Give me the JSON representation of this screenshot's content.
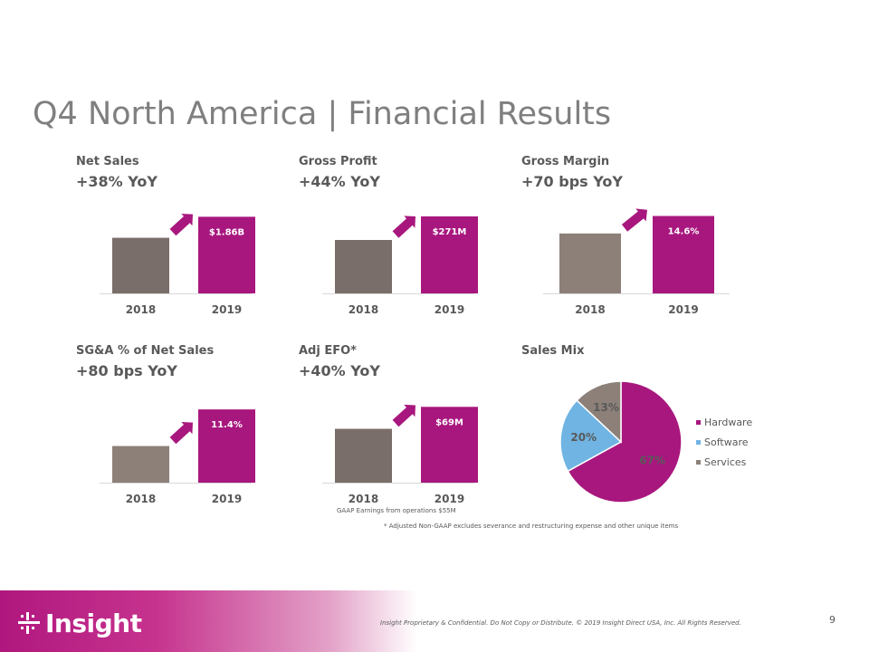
{
  "slide": {
    "title": "Q4 North America | Financial Results",
    "page_number": "9",
    "footer": "Insight Proprietary & Confidential. Do Not Copy or Distribute.  © 2019 Insight Direct USA, Inc.  All Rights Reserved.",
    "logo_text": "Insight",
    "gaap_note": "GAAP Earnings from operations $55M",
    "adjusted_note": "* Adjusted Non-GAAP excludes severance and restructuring  expense and other unique items"
  },
  "colors": {
    "accent": "#a8177e",
    "bar_2018_dark": "#7a6e6a",
    "bar_2018_light": "#8c8079",
    "software": "#6fb4e3",
    "services": "#8c8079",
    "axis": "#d9d9d9"
  },
  "chart_data": [
    {
      "id": "net-sales",
      "type": "bar",
      "title": "Net Sales",
      "subtitle": "+38% YoY",
      "categories": [
        "2018",
        "2019"
      ],
      "values": [
        1.35,
        1.86
      ],
      "ylim": [
        0,
        2.0
      ],
      "data_labels": [
        "",
        "$1.86B"
      ]
    },
    {
      "id": "gross-profit",
      "type": "bar",
      "title": "Gross Profit",
      "subtitle": "+44% YoY",
      "categories": [
        "2018",
        "2019"
      ],
      "values": [
        188,
        271
      ],
      "ylim": [
        0,
        290
      ],
      "data_labels": [
        "",
        "$271M"
      ]
    },
    {
      "id": "gross-margin",
      "type": "bar",
      "title": "Gross Margin",
      "subtitle": "+70 bps YoY",
      "categories": [
        "2018",
        "2019"
      ],
      "values": [
        13.9,
        14.6
      ],
      "ylim": [
        11.5,
        14.8
      ],
      "data_labels": [
        "",
        "14.6%"
      ]
    },
    {
      "id": "sga",
      "type": "bar",
      "title": "SG&A % of Net Sales",
      "subtitle": "+80 bps YoY",
      "categories": [
        "2018",
        "2019"
      ],
      "values": [
        10.6,
        11.4
      ],
      "ylim": [
        9.8,
        11.6
      ],
      "data_labels": [
        "",
        "11.4%"
      ]
    },
    {
      "id": "adj-efo",
      "type": "bar",
      "title": "Adj EFO*",
      "subtitle": "+40% YoY",
      "categories": [
        "2018",
        "2019"
      ],
      "values": [
        49,
        69
      ],
      "ylim": [
        0,
        75
      ],
      "data_labels": [
        "",
        "$69M"
      ]
    },
    {
      "id": "sales-mix",
      "type": "pie",
      "title": "Sales Mix",
      "categories": [
        "Hardware",
        "Software",
        "Services"
      ],
      "values": [
        67,
        20,
        13
      ],
      "data_labels": [
        "67%",
        "20%",
        "13%"
      ],
      "legend": "right"
    }
  ]
}
